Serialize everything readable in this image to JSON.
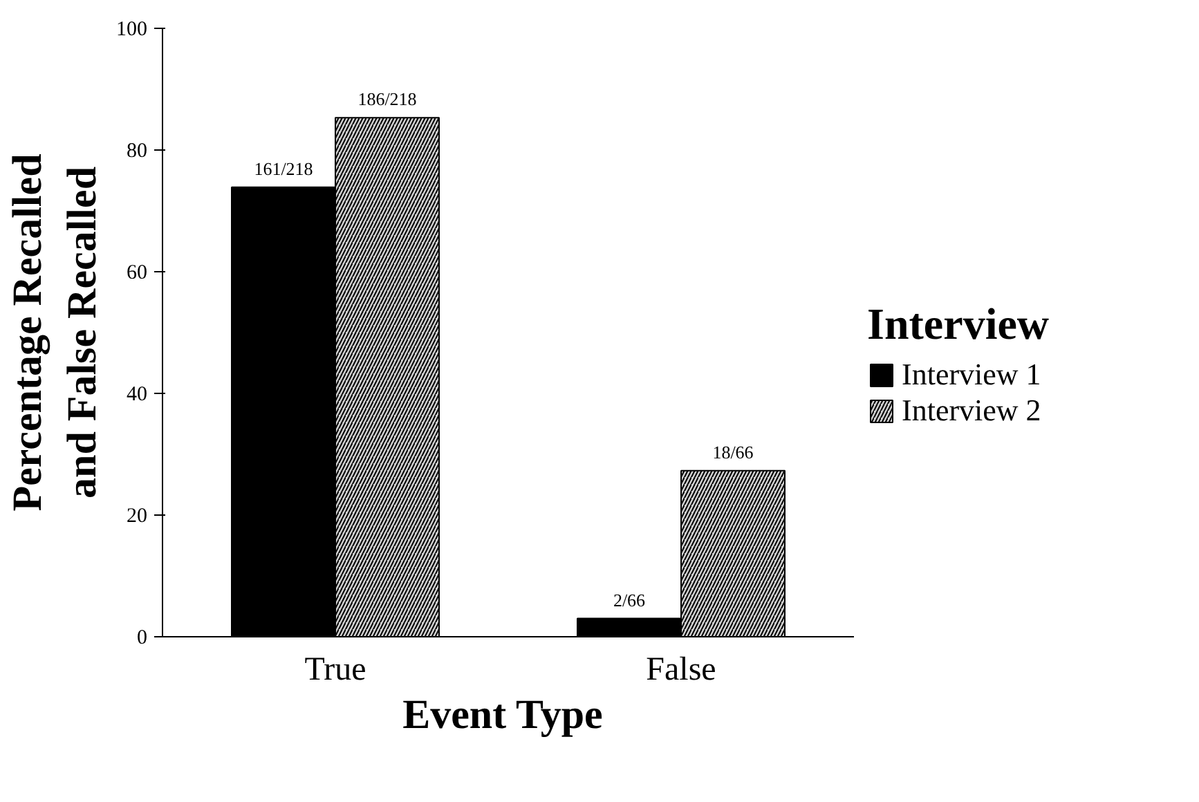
{
  "chart_data": {
    "type": "bar",
    "xlabel": "Event  Type",
    "ylabel": "Percentage Recalled\nand False Recalled",
    "legend_title": "Interview",
    "categories": [
      "True",
      "False"
    ],
    "series": [
      {
        "name": "Interview 1",
        "color": "#000000",
        "values": [
          73.9,
          3.0
        ],
        "value_labels": [
          "161/218",
          "2/66"
        ]
      },
      {
        "name": "Interview 2",
        "color": "#d0d0d0",
        "values": [
          85.3,
          27.3
        ],
        "value_labels": [
          "186/218",
          "18/66"
        ]
      }
    ],
    "ylim": [
      0,
      100
    ],
    "yticks": [
      0,
      20,
      40,
      60,
      80,
      100
    ],
    "grid": false,
    "legend": "right"
  }
}
